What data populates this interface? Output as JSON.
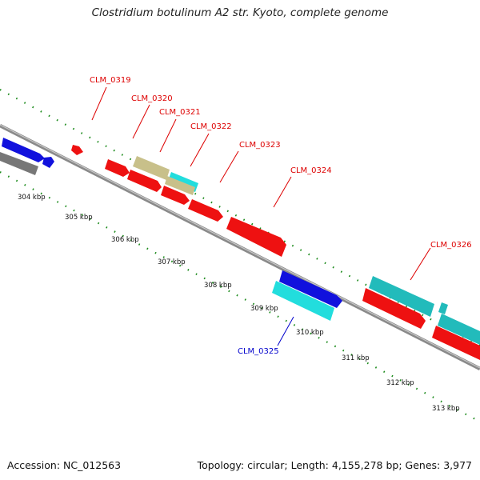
{
  "title": "Clostridium botulinum A2 str. Kyoto, complete genome",
  "footer": {
    "accession": "Accession: NC_012563",
    "summary": "Topology: circular; Length: 4,155,278 bp; Genes: 3,977"
  },
  "colors": {
    "forward_strand_red": "#ee1111",
    "reverse_strand_blue": "#1111dd",
    "cyan": "#22dddd",
    "teal": "#22bbbb",
    "khaki": "#c8c08a",
    "gray": "#777777",
    "tick_green": "#1a8a1a",
    "label_red": "#dd0000",
    "label_blue": "#0000cc"
  },
  "scale_labels": [
    "304 kbp",
    "305 kbp",
    "306 kbp",
    "307 kbp",
    "308 kbp",
    "309 kbp",
    "310 kbp",
    "311 kbp",
    "312 kbp",
    "313 kbp"
  ],
  "gene_labels": [
    {
      "text": "CLM_0319",
      "color": "red"
    },
    {
      "text": "CLM_0320",
      "color": "red"
    },
    {
      "text": "CLM_0321",
      "color": "red"
    },
    {
      "text": "CLM_0322",
      "color": "red"
    },
    {
      "text": "CLM_0323",
      "color": "red"
    },
    {
      "text": "CLM_0324",
      "color": "red"
    },
    {
      "text": "CLM_0325",
      "color": "blue"
    },
    {
      "text": "CLM_0326",
      "color": "red"
    }
  ]
}
